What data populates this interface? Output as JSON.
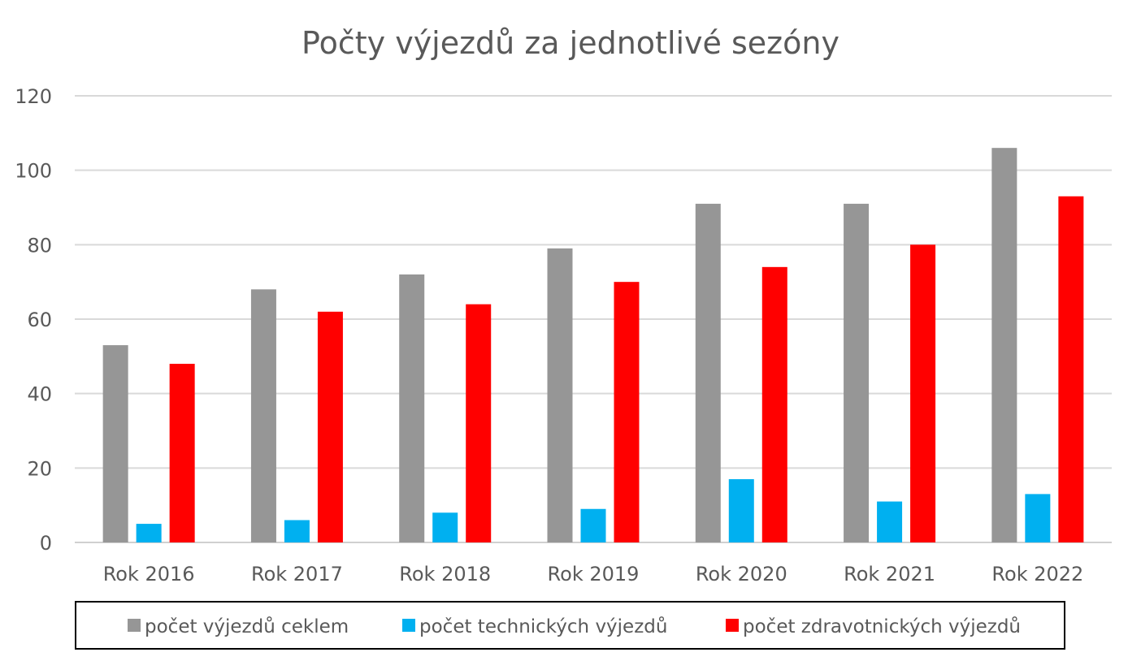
{
  "chart_data": {
    "type": "bar",
    "title": "Počty výjezdů za jednotlivé sezóny",
    "xlabel": "",
    "ylabel": "",
    "categories": [
      "Rok 2016",
      "Rok 2017",
      "Rok 2018",
      "Rok 2019",
      "Rok 2020",
      "Rok 2021",
      "Rok 2022"
    ],
    "series": [
      {
        "name": "počet výjezdů ceklem",
        "color": "#969696",
        "values": [
          53,
          68,
          72,
          79,
          91,
          91,
          106
        ]
      },
      {
        "name": "počet technických výjezdů",
        "color": "#00b0f0",
        "values": [
          5,
          6,
          8,
          9,
          17,
          11,
          13
        ]
      },
      {
        "name": "počet zdravotnických výjezdů",
        "color": "#ff0000",
        "values": [
          48,
          62,
          64,
          70,
          74,
          80,
          93
        ]
      }
    ],
    "ylim": [
      0,
      120
    ],
    "yticks": [
      0,
      20,
      40,
      60,
      80,
      100,
      120
    ],
    "grid": true,
    "legend_position": "bottom"
  }
}
